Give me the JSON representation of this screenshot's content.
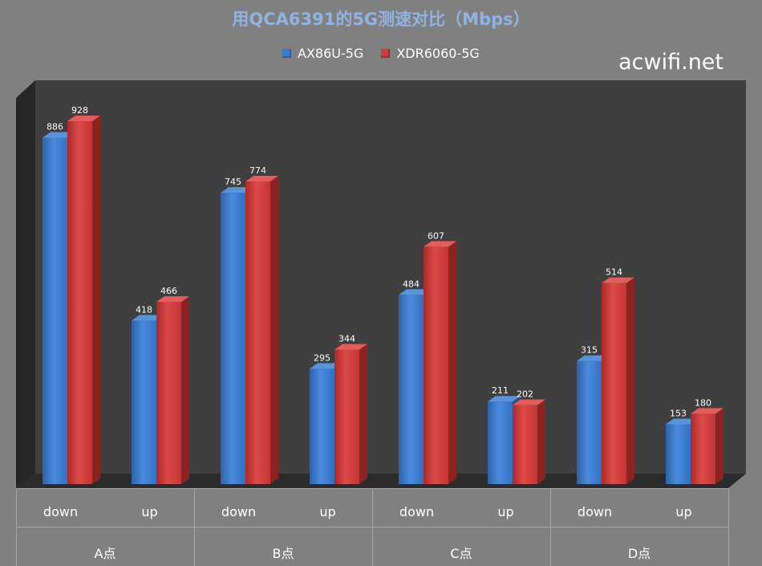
{
  "title": "用QCA6391的5G测速对比（Mbps）",
  "watermark": "acwifi.net",
  "colors": {
    "series1": "#3C7BD0",
    "series2": "#D43B3B",
    "title": "#8FB4E3",
    "wall": "#3F3F3F",
    "background": "#808080"
  },
  "chart_data": {
    "type": "bar",
    "style": "3d-clustered-column",
    "title": "用QCA6391的5G测速对比（Mbps）",
    "legend_position": "top",
    "grid": false,
    "groups": [
      "A点",
      "B点",
      "C点",
      "D点"
    ],
    "categories": [
      "down",
      "up",
      "down",
      "up",
      "down",
      "up",
      "down",
      "up"
    ],
    "series": [
      {
        "name": "AX86U-5G",
        "color": "#3C7BD0",
        "values": [
          886,
          418,
          745,
          295,
          484,
          211,
          315,
          153
        ]
      },
      {
        "name": "XDR6060-5G",
        "color": "#D43B3B",
        "values": [
          928,
          466,
          774,
          344,
          607,
          202,
          514,
          180
        ]
      }
    ],
    "ylim": [
      0,
      1000
    ]
  }
}
